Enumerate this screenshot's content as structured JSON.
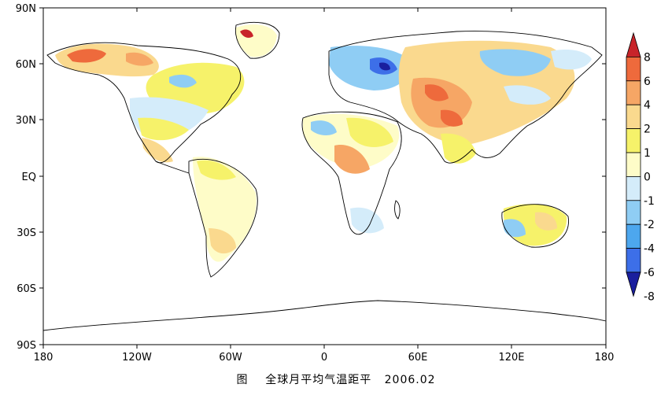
{
  "map": {
    "lat_labels": [
      "90N",
      "60N",
      "30N",
      "EQ",
      "30S",
      "60S",
      "90S"
    ],
    "lon_labels": [
      "180",
      "120W",
      "60W",
      "0",
      "60E",
      "120E",
      "180"
    ]
  },
  "colorbar": {
    "levels": [
      "8",
      "6",
      "4",
      "2",
      "1",
      "0",
      "-1",
      "-2",
      "-4",
      "-6",
      "-8"
    ],
    "colors": [
      "#c8242a",
      "#ee6a3c",
      "#f6a665",
      "#fad98e",
      "#f6f26a",
      "#fefcc8",
      "#d4ecfa",
      "#8fcdf4",
      "#4da7ee",
      "#3d6fe8",
      "#1a1f9e"
    ]
  },
  "caption": {
    "prefix": "图",
    "title": "全球月平均气温距平",
    "date": "2006.02"
  }
}
